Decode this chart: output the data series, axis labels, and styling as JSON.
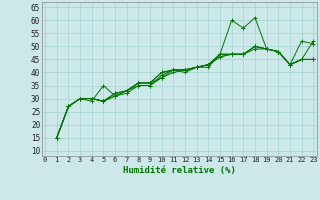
{
  "xlabel": "Humidité relative (%)",
  "ylabel_ticks": [
    10,
    15,
    20,
    25,
    30,
    35,
    40,
    45,
    50,
    55,
    60,
    65
  ],
  "ylim": [
    8,
    67
  ],
  "xlim": [
    -0.3,
    23.3
  ],
  "xticks": [
    0,
    1,
    2,
    3,
    4,
    5,
    6,
    7,
    8,
    9,
    10,
    11,
    12,
    13,
    14,
    15,
    16,
    17,
    18,
    19,
    20,
    21,
    22,
    23
  ],
  "bg_color": "#cce8e8",
  "grid_color": "#99cccc",
  "line_color": "#007700",
  "series": [
    [
      15,
      27,
      30,
      29,
      35,
      31,
      32,
      35,
      35,
      39,
      41,
      40,
      42,
      42,
      47,
      60,
      57,
      61,
      49,
      48,
      43,
      52,
      51
    ],
    [
      15,
      27,
      30,
      30,
      29,
      31,
      33,
      36,
      36,
      40,
      41,
      41,
      42,
      43,
      47,
      47,
      47,
      50,
      49,
      48,
      43,
      45,
      52
    ],
    [
      15,
      27,
      30,
      30,
      29,
      31,
      33,
      36,
      36,
      40,
      41,
      41,
      42,
      43,
      47,
      47,
      47,
      50,
      49,
      48,
      43,
      45,
      45
    ],
    [
      15,
      27,
      30,
      30,
      29,
      32,
      33,
      36,
      36,
      38,
      41,
      41,
      42,
      43,
      46,
      47,
      47,
      50,
      49,
      48,
      43,
      45,
      45
    ],
    [
      15,
      27,
      30,
      30,
      29,
      32,
      33,
      35,
      35,
      38,
      40,
      41,
      42,
      43,
      46,
      47,
      47,
      49,
      49,
      48,
      43,
      45,
      45
    ]
  ],
  "x_series": [
    1,
    2,
    3,
    4,
    5,
    6,
    7,
    8,
    9,
    10,
    11,
    12,
    13,
    14,
    15,
    16,
    17,
    18,
    19,
    20,
    21,
    22,
    23
  ]
}
